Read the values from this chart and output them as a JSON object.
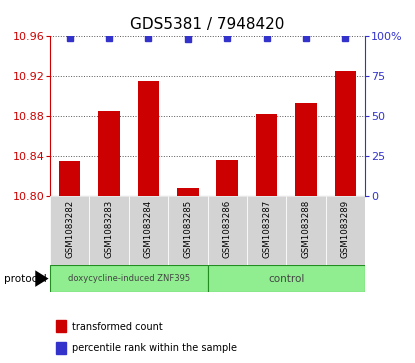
{
  "title": "GDS5381 / 7948420",
  "samples": [
    "GSM1083282",
    "GSM1083283",
    "GSM1083284",
    "GSM1083285",
    "GSM1083286",
    "GSM1083287",
    "GSM1083288",
    "GSM1083289"
  ],
  "bar_values": [
    10.835,
    10.885,
    10.915,
    10.808,
    10.836,
    10.882,
    10.893,
    10.925
  ],
  "percentile_values": [
    99,
    99,
    99,
    98,
    99,
    99,
    99,
    99
  ],
  "bar_color": "#cc0000",
  "percentile_color": "#3333cc",
  "left_ylim": [
    10.8,
    10.96
  ],
  "left_yticks": [
    10.8,
    10.84,
    10.88,
    10.92,
    10.96
  ],
  "right_ylim": [
    0,
    100
  ],
  "right_yticks": [
    0,
    25,
    50,
    75,
    100
  ],
  "right_yticklabels": [
    "0",
    "25",
    "50",
    "75",
    "100%"
  ],
  "group1_label": "doxycycline-induced ZNF395",
  "group2_label": "control",
  "group1_indices": [
    0,
    1,
    2,
    3
  ],
  "group2_indices": [
    4,
    5,
    6,
    7
  ],
  "group_bg_color": "#90EE90",
  "sample_bg_color": "#d3d3d3",
  "protocol_label": "protocol",
  "legend_bar_label": "transformed count",
  "legend_pct_label": "percentile rank within the sample",
  "bar_bottom": 10.8,
  "grid_color": "#333333",
  "title_fontsize": 11,
  "tick_fontsize": 8
}
